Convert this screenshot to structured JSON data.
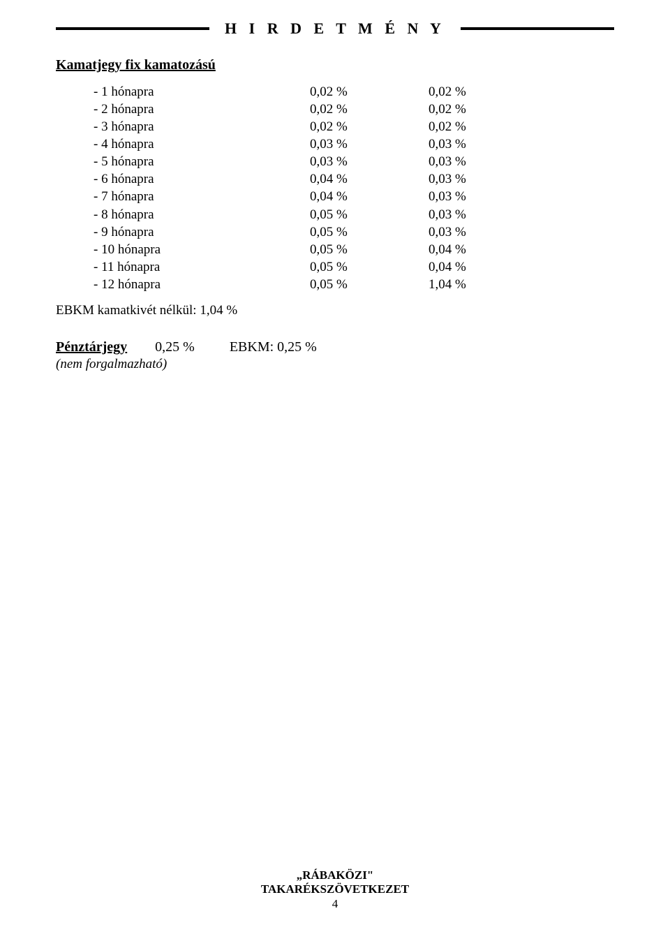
{
  "header": {
    "title": "H I R D E T M É N Y"
  },
  "section": {
    "title": "Kamatjegy fix kamatozású",
    "rows": [
      {
        "label": "- 1 hónapra",
        "v1": "0,02 %",
        "v2": "0,02 %"
      },
      {
        "label": "- 2 hónapra",
        "v1": "0,02 %",
        "v2": "0,02 %"
      },
      {
        "label": "- 3 hónapra",
        "v1": "0,02 %",
        "v2": "0,02 %"
      },
      {
        "label": "- 4 hónapra",
        "v1": "0,03 %",
        "v2": "0,03 %"
      },
      {
        "label": "- 5 hónapra",
        "v1": "0,03 %",
        "v2": "0,03 %"
      },
      {
        "label": "- 6 hónapra",
        "v1": "0,04 %",
        "v2": "0,03 %"
      },
      {
        "label": "- 7 hónapra",
        "v1": "0,04 %",
        "v2": "0,03 %"
      },
      {
        "label": "- 8 hónapra",
        "v1": "0,05 %",
        "v2": "0,03 %"
      },
      {
        "label": "- 9 hónapra",
        "v1": "0,05 %",
        "v2": "0,03 %"
      },
      {
        "label": "- 10 hónapra",
        "v1": "0,05 %",
        "v2": "0,04 %"
      },
      {
        "label": "- 11 hónapra",
        "v1": "0,05 %",
        "v2": "0,04 %"
      },
      {
        "label": "- 12 hónapra",
        "v1": "0,05 %",
        "v2": "1,04 %"
      }
    ],
    "ebkm": "EBKM kamatkivét nélkül: 1,04 %"
  },
  "penztarjegy": {
    "label": "Pénztárjegy",
    "rate": "0,25 %",
    "ebkm": "EBKM: 0,25 %",
    "note": "(nem forgalmazható)"
  },
  "footer": {
    "brand": "„RÁBAKÖZI\"",
    "org": "TAKARÉKSZÖVETKEZET",
    "page": "4"
  }
}
